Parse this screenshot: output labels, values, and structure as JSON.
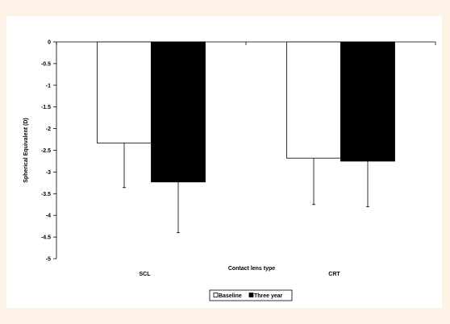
{
  "chart_data": {
    "type": "bar",
    "title": "",
    "xlabel": "Contact lens type",
    "ylabel": "Spherical Equivalent (D)",
    "categories": [
      "SCL",
      "CRT"
    ],
    "ylim": [
      -5,
      0
    ],
    "yticks": [
      0,
      -0.5,
      -1,
      -1.5,
      -2,
      -2.5,
      -3,
      -3.5,
      -4,
      -4.5,
      -5
    ],
    "series": [
      {
        "name": "Baseline",
        "values": [
          -2.33,
          -2.68
        ],
        "errors": [
          1.03,
          1.07
        ],
        "color": "#ffffff"
      },
      {
        "name": "Three year",
        "values": [
          -3.23,
          -2.75
        ],
        "errors": [
          1.17,
          1.05
        ],
        "color": "#000000"
      }
    ],
    "grid": false,
    "legend_position": "bottom-center"
  }
}
